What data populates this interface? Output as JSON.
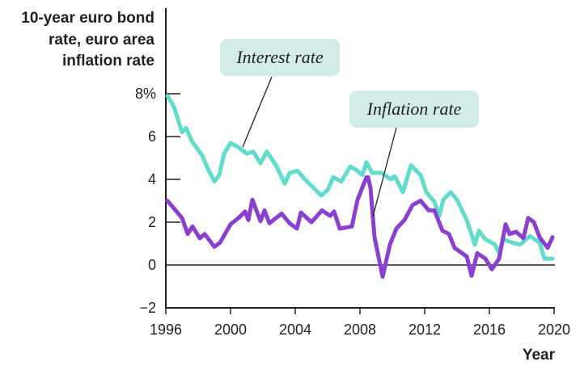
{
  "chart_data": {
    "type": "line",
    "ylabel_lines": [
      "10-year euro bond",
      "rate, euro area",
      "inflation rate"
    ],
    "xlabel": "Year",
    "xlim": [
      1996,
      2020
    ],
    "ylim": [
      -2,
      10
    ],
    "x_ticks": [
      "1996",
      "2000",
      "2004",
      "2008",
      "2012",
      "2016",
      "2020"
    ],
    "x_tick_values": [
      1996,
      2000,
      2004,
      2008,
      2012,
      2016,
      2020
    ],
    "y_ticks": [
      "8%",
      "6",
      "4",
      "2",
      "0",
      "−2"
    ],
    "y_tick_values": [
      8,
      6,
      4,
      2,
      0,
      -2
    ],
    "grid": false,
    "zero_line": true,
    "series": [
      {
        "name": "Interest rate",
        "color": "#5fdccb",
        "points": [
          [
            1996.1,
            7.9
          ],
          [
            1996.5,
            7.4
          ],
          [
            1997.0,
            6.2
          ],
          [
            1997.25,
            6.4
          ],
          [
            1997.6,
            5.8
          ],
          [
            1998.25,
            5.1
          ],
          [
            1998.6,
            4.5
          ],
          [
            1999.0,
            3.9
          ],
          [
            1999.3,
            4.2
          ],
          [
            1999.6,
            5.2
          ],
          [
            2000.0,
            5.7
          ],
          [
            2000.5,
            5.5
          ],
          [
            2001.0,
            5.2
          ],
          [
            2001.4,
            5.3
          ],
          [
            2001.85,
            4.75
          ],
          [
            2002.25,
            5.3
          ],
          [
            2002.85,
            4.6
          ],
          [
            2003.35,
            3.8
          ],
          [
            2003.65,
            4.3
          ],
          [
            2004.15,
            4.4
          ],
          [
            2004.6,
            4.0
          ],
          [
            2005.0,
            3.7
          ],
          [
            2005.6,
            3.25
          ],
          [
            2006.0,
            3.5
          ],
          [
            2006.35,
            4.1
          ],
          [
            2006.85,
            3.9
          ],
          [
            2007.4,
            4.6
          ],
          [
            2007.75,
            4.45
          ],
          [
            2008.15,
            4.2
          ],
          [
            2008.4,
            4.8
          ],
          [
            2008.75,
            4.3
          ],
          [
            2009.35,
            4.3
          ],
          [
            2009.9,
            4.0
          ],
          [
            2010.15,
            4.15
          ],
          [
            2010.65,
            3.4
          ],
          [
            2011.15,
            4.65
          ],
          [
            2011.75,
            4.2
          ],
          [
            2012.1,
            3.4
          ],
          [
            2012.6,
            2.95
          ],
          [
            2012.9,
            2.3
          ],
          [
            2013.15,
            3.05
          ],
          [
            2013.6,
            3.4
          ],
          [
            2014.0,
            3.05
          ],
          [
            2014.6,
            2.1
          ],
          [
            2015.1,
            0.95
          ],
          [
            2015.35,
            1.6
          ],
          [
            2015.75,
            1.2
          ],
          [
            2016.35,
            0.95
          ],
          [
            2016.6,
            0.55
          ],
          [
            2016.85,
            1.2
          ],
          [
            2017.4,
            1.05
          ],
          [
            2017.9,
            0.95
          ],
          [
            2018.5,
            1.35
          ],
          [
            2019.1,
            1.05
          ],
          [
            2019.4,
            0.3
          ],
          [
            2019.9,
            0.3
          ]
        ]
      },
      {
        "name": "Inflation rate",
        "color": "#8a3fd1",
        "points": [
          [
            1996.1,
            3.0
          ],
          [
            1997.0,
            2.2
          ],
          [
            1997.35,
            1.45
          ],
          [
            1997.65,
            1.8
          ],
          [
            1998.1,
            1.25
          ],
          [
            1998.4,
            1.45
          ],
          [
            1999.0,
            0.85
          ],
          [
            1999.35,
            1.05
          ],
          [
            2000.0,
            1.9
          ],
          [
            2000.5,
            2.2
          ],
          [
            2000.9,
            2.5
          ],
          [
            2001.1,
            2.1
          ],
          [
            2001.35,
            3.05
          ],
          [
            2001.85,
            2.05
          ],
          [
            2002.1,
            2.55
          ],
          [
            2002.4,
            1.95
          ],
          [
            2003.15,
            2.4
          ],
          [
            2003.65,
            1.95
          ],
          [
            2004.1,
            1.7
          ],
          [
            2004.35,
            2.45
          ],
          [
            2005.0,
            2.0
          ],
          [
            2005.65,
            2.55
          ],
          [
            2006.15,
            2.3
          ],
          [
            2006.4,
            2.5
          ],
          [
            2006.75,
            1.7
          ],
          [
            2007.5,
            1.8
          ],
          [
            2007.85,
            3.05
          ],
          [
            2008.4,
            4.1
          ],
          [
            2008.5,
            4.1
          ],
          [
            2008.65,
            3.6
          ],
          [
            2008.9,
            1.3
          ],
          [
            2009.4,
            -0.55
          ],
          [
            2009.85,
            0.95
          ],
          [
            2010.25,
            1.7
          ],
          [
            2010.75,
            2.1
          ],
          [
            2011.25,
            2.8
          ],
          [
            2011.75,
            3.0
          ],
          [
            2012.25,
            2.55
          ],
          [
            2012.6,
            2.55
          ],
          [
            2013.1,
            1.6
          ],
          [
            2013.5,
            1.45
          ],
          [
            2013.85,
            0.8
          ],
          [
            2014.6,
            0.4
          ],
          [
            2014.9,
            -0.5
          ],
          [
            2015.25,
            0.55
          ],
          [
            2015.75,
            0.3
          ],
          [
            2016.15,
            -0.2
          ],
          [
            2016.6,
            0.3
          ],
          [
            2017.0,
            1.9
          ],
          [
            2017.25,
            1.45
          ],
          [
            2017.65,
            1.55
          ],
          [
            2018.1,
            1.25
          ],
          [
            2018.4,
            2.2
          ],
          [
            2018.75,
            2.0
          ],
          [
            2019.1,
            1.3
          ],
          [
            2019.6,
            0.8
          ],
          [
            2019.9,
            1.3
          ]
        ]
      }
    ],
    "callout_box_color": "#d2ece8"
  }
}
